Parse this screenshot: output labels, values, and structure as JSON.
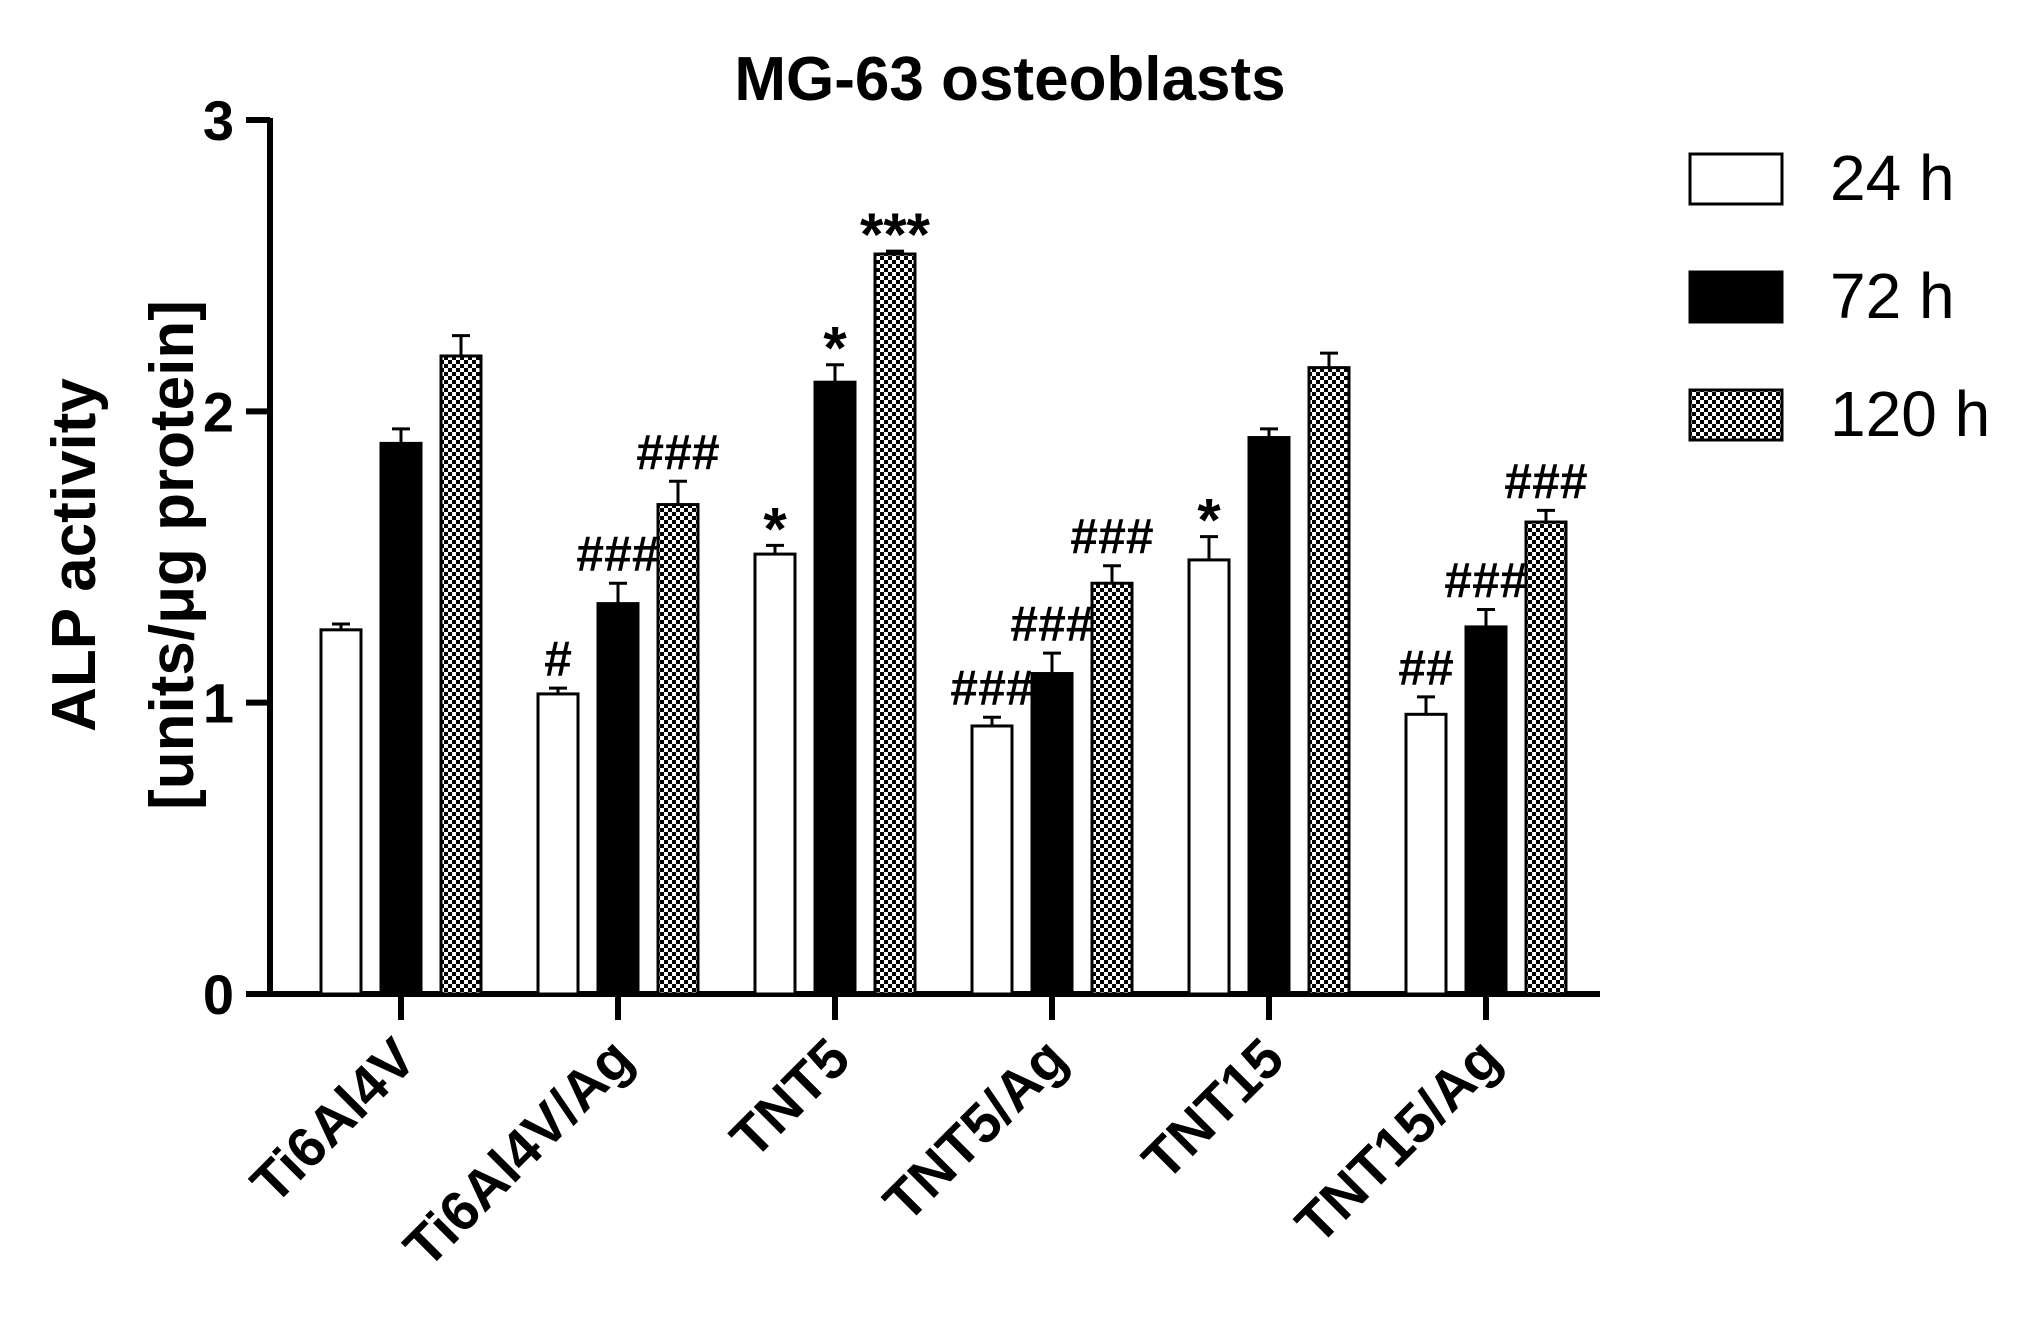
{
  "chart_data": {
    "type": "bar",
    "title": "MG-63 osteoblasts",
    "ylabel_line1": "ALP activity",
    "ylabel_line2": "[units/μg protein]",
    "xlabel": "",
    "ylim": [
      0,
      3
    ],
    "yticks": [
      "0",
      "1",
      "2",
      "3"
    ],
    "categories": [
      "Ti6Al4V",
      "Ti6Al4V/Ag",
      "TNT5",
      "TNT5/Ag",
      "TNT15",
      "TNT15/Ag"
    ],
    "series": [
      {
        "name": "24 h",
        "fill": "white",
        "values": [
          1.25,
          1.03,
          1.51,
          0.92,
          1.49,
          0.96
        ],
        "errors": [
          0.02,
          0.02,
          0.03,
          0.03,
          0.08,
          0.06
        ],
        "annotations": [
          "",
          "#",
          "*",
          "###",
          "*",
          "##"
        ]
      },
      {
        "name": "72 h",
        "fill": "black",
        "values": [
          1.89,
          1.34,
          2.1,
          1.1,
          1.91,
          1.26
        ],
        "errors": [
          0.05,
          0.07,
          0.06,
          0.07,
          0.03,
          0.06
        ],
        "annotations": [
          "",
          "###",
          "*",
          "###",
          "",
          "###"
        ]
      },
      {
        "name": "120 h",
        "fill": "checker",
        "values": [
          2.19,
          1.68,
          2.54,
          1.41,
          2.15,
          1.62
        ],
        "errors": [
          0.07,
          0.08,
          0.01,
          0.06,
          0.05,
          0.04
        ],
        "annotations": [
          "",
          "###",
          "***",
          "###",
          "",
          "###"
        ]
      }
    ],
    "legend_position": "top-right"
  }
}
